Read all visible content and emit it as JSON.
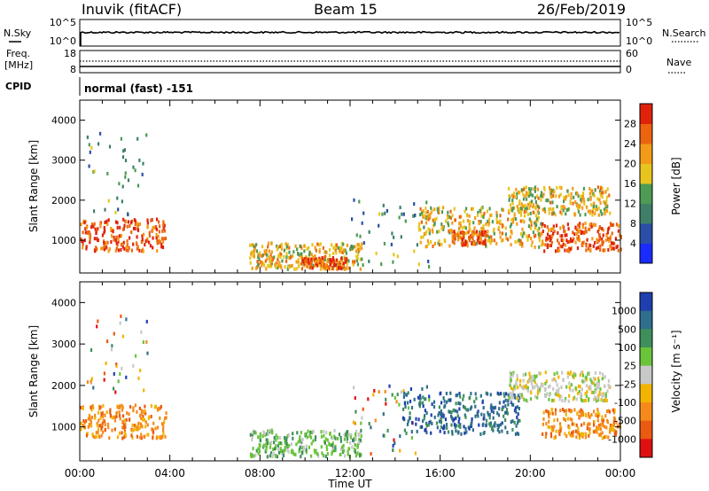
{
  "header": {
    "station": "Inuvik  (fitACF)",
    "beam": "Beam 15",
    "date": "26/Feb/2019"
  },
  "strip_labels": {
    "nsky": "N.Sky",
    "nsky_ticks": [
      "10^5",
      "10^0"
    ],
    "nsearch": "N.Search",
    "nsearch_ticks": [
      "10^5",
      "10^0"
    ],
    "freq": "Freq.",
    "freq_unit": "[MHz]",
    "freq_ticks": [
      "18",
      "8"
    ],
    "nave": "Nave",
    "nave_ticks": [
      "60",
      "0"
    ],
    "cpid": "CPID",
    "cpid_value": "normal (fast) -151"
  },
  "chart_data": [
    {
      "type": "heatmap",
      "title": "",
      "xlabel": "Time UT",
      "ylabel": "Slant Range [km]",
      "quantity": "Power [dB]",
      "x_ticks": [
        "00:00",
        "04:00",
        "08:00",
        "12:00",
        "16:00",
        "20:00",
        "00:00"
      ],
      "y_ticks": [
        "1000",
        "2000",
        "3000",
        "4000"
      ],
      "xlim": [
        0,
        24
      ],
      "ylim": [
        180,
        4500
      ],
      "colorbar": {
        "ticks": [
          "4",
          "8",
          "12",
          "16",
          "20",
          "24",
          "28"
        ],
        "colors": [
          "#1a2bff",
          "#2a4fa8",
          "#3f7f6a",
          "#4d9b55",
          "#e7c51e",
          "#f39a17",
          "#ec6410",
          "#e0220a"
        ]
      },
      "echo_regions": [
        {
          "t_start": 0.0,
          "t_end": 3.8,
          "range_low": 700,
          "range_high": 1500,
          "level": "high"
        },
        {
          "t_start": 0.3,
          "t_end": 3.0,
          "range_low": 1500,
          "range_high": 3700,
          "level": "scattered"
        },
        {
          "t_start": 7.5,
          "t_end": 12.5,
          "range_low": 250,
          "range_high": 900,
          "level": "medium"
        },
        {
          "t_start": 9.8,
          "t_end": 11.8,
          "range_low": 250,
          "range_high": 550,
          "level": "high"
        },
        {
          "t_start": 12.0,
          "t_end": 15.5,
          "range_low": 300,
          "range_high": 2000,
          "level": "scattered"
        },
        {
          "t_start": 15.0,
          "t_end": 20.5,
          "range_low": 800,
          "range_high": 1800,
          "level": "medium"
        },
        {
          "t_start": 16.5,
          "t_end": 18.0,
          "range_low": 850,
          "range_high": 1200,
          "level": "high"
        },
        {
          "t_start": 19.0,
          "t_end": 23.5,
          "range_low": 1600,
          "range_high": 2300,
          "level": "medium"
        },
        {
          "t_start": 20.5,
          "t_end": 24.0,
          "range_low": 700,
          "range_high": 1400,
          "level": "high"
        }
      ]
    },
    {
      "type": "heatmap",
      "title": "",
      "xlabel": "Time UT",
      "ylabel": "Slant Range [km]",
      "quantity": "Velocity   [m s⁻¹]",
      "x_ticks": [
        "00:00",
        "04:00",
        "08:00",
        "12:00",
        "16:00",
        "20:00",
        "00:00"
      ],
      "y_ticks": [
        "1000",
        "2000",
        "3000",
        "4000"
      ],
      "xlim": [
        0,
        24
      ],
      "ylim": [
        180,
        4500
      ],
      "colorbar": {
        "ticks": [
          "1000",
          "500",
          "100",
          "25",
          "-25",
          "-100",
          "-500",
          "-1000"
        ],
        "colors": [
          "#1f3fb0",
          "#2f6e8c",
          "#3f8f5c",
          "#6ac43a",
          "#c8c8c8",
          "#f2b400",
          "#f58a1a",
          "#ea5a10",
          "#e01010"
        ]
      },
      "echo_regions": [
        {
          "t_start": 0.0,
          "t_end": 3.8,
          "range_low": 700,
          "range_high": 1500,
          "level": "negative"
        },
        {
          "t_start": 0.3,
          "t_end": 3.0,
          "range_low": 1500,
          "range_high": 3700,
          "level": "mixed"
        },
        {
          "t_start": 7.5,
          "t_end": 12.5,
          "range_low": 250,
          "range_high": 900,
          "level": "positive-low"
        },
        {
          "t_start": 12.0,
          "t_end": 15.5,
          "range_low": 300,
          "range_high": 2000,
          "level": "mixed"
        },
        {
          "t_start": 14.3,
          "t_end": 19.5,
          "range_low": 800,
          "range_high": 1800,
          "level": "positive"
        },
        {
          "t_start": 19.0,
          "t_end": 23.5,
          "range_low": 1600,
          "range_high": 2300,
          "level": "near-zero"
        },
        {
          "t_start": 20.5,
          "t_end": 24.0,
          "range_low": 700,
          "range_high": 1400,
          "level": "negative"
        }
      ]
    }
  ]
}
